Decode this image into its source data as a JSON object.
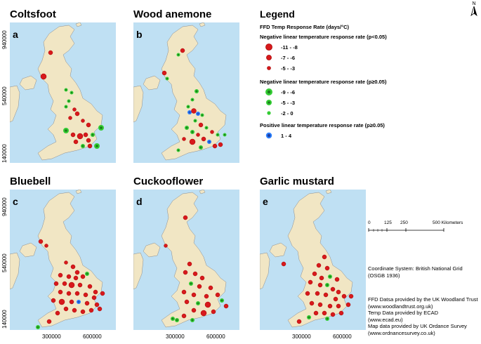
{
  "panels": [
    {
      "title": "Coltsfoot",
      "letter": "a",
      "yticks": [
        "940000",
        "540000",
        "140000"
      ],
      "xticks": []
    },
    {
      "title": "Wood anemone",
      "letter": "b",
      "yticks": [],
      "xticks": []
    },
    {
      "title": "Bluebell",
      "letter": "c",
      "yticks": [
        "940000",
        "540000",
        "140000"
      ],
      "xticks": [
        "300000",
        "600000"
      ]
    },
    {
      "title": "Cuckooflower",
      "letter": "d",
      "yticks": [],
      "xticks": [
        "300000",
        "600000"
      ]
    },
    {
      "title": "Garlic mustard",
      "letter": "e",
      "yticks": [],
      "xticks": [
        "300000",
        "600000"
      ]
    }
  ],
  "legend": {
    "title": "Legend",
    "heading": "FFD Temp Response Rate (days/°C)",
    "groups": [
      {
        "label": "Negative linear temperature response rate (p<0.05)",
        "items": [
          {
            "range": "-11 - -8",
            "color": "#d7191c",
            "ring": "#c00000",
            "size": "large"
          },
          {
            "range": "-7 - -6",
            "color": "#d7191c",
            "ring": "#c00000",
            "size": "medium"
          },
          {
            "range": "-5 - -3",
            "color": "#d7191c",
            "ring": "#c00000",
            "size": "small"
          }
        ]
      },
      {
        "label": "Negative linear temperature response rate (p≥0.05)",
        "items": [
          {
            "range": "-9 - -6",
            "color": "#2ca02c",
            "ring": "#33cc33",
            "size": "large"
          },
          {
            "range": "-5 - -3",
            "color": "#2ca02c",
            "ring": "#33cc33",
            "size": "medium"
          },
          {
            "range": "-2 - 0",
            "color": "#2ca02c",
            "ring": "#33cc33",
            "size": "small"
          }
        ]
      },
      {
        "label": "Positive linear temperature response rate (p≥0.05)",
        "items": [
          {
            "range": "1 - 4",
            "color": "#1f4fbf",
            "ring": "#2a7fff",
            "size": "medium"
          }
        ]
      }
    ]
  },
  "scale": {
    "labels": [
      "0",
      "125",
      "250",
      "500 Kilometers"
    ]
  },
  "info": {
    "coords": [
      "Coordinate System: British National Grid",
      "(OSGB 1936)"
    ],
    "sources": [
      "FFD Datsa provided by the UK Woodland Trust",
      "(www.woodlandtrust.org.uk)",
      "Temp Data provided by ECAD",
      "(www.ecad.eu)",
      "Map data provided by UK Ordance Survey",
      "(www.ordnancesurvey.co.uk)"
    ]
  },
  "north": "N",
  "colors": {
    "sea": "#bfe0f3",
    "land": "#f1e6c4",
    "coast": "#8c8c8c",
    "red": "#d7191c",
    "green": "#2ca02c",
    "blue": "#1f4fbf"
  }
}
